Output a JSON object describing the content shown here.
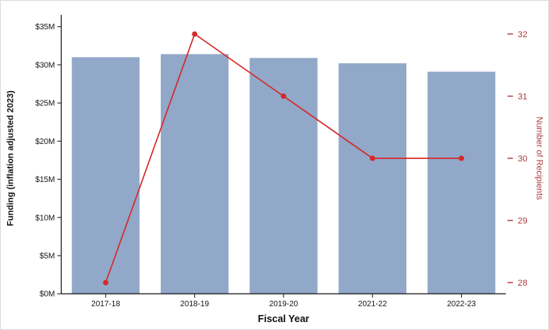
{
  "chart_data": {
    "type": "bar",
    "title": "",
    "categories": [
      "2017-18",
      "2018-19",
      "2019-20",
      "2021-22",
      "2022-23"
    ],
    "series": [
      {
        "name": "Funding (inflation adjusted 2023)",
        "type": "bar",
        "axis": "left",
        "unit": "$M",
        "values": [
          31.0,
          31.4,
          30.9,
          30.2,
          29.1
        ],
        "color": "#92a8c9"
      },
      {
        "name": "Number of Recipients",
        "type": "line",
        "axis": "right",
        "values": [
          28,
          32,
          31,
          30,
          30
        ],
        "color": "#d62728"
      }
    ],
    "xlabel": "Fiscal Year",
    "ylabel_left": "Funding (inflation adjusted 2023)",
    "ylabel_right": "Number of Recipients",
    "left_axis": {
      "ticks": [
        "$0M",
        "$5M",
        "$10M",
        "$15M",
        "$20M",
        "$25M",
        "$30M",
        "$35M"
      ],
      "tick_values": [
        0,
        5,
        10,
        15,
        20,
        25,
        30,
        35
      ],
      "ylim": [
        0,
        35.5
      ]
    },
    "right_axis": {
      "ticks": [
        "28",
        "29",
        "30",
        "31",
        "32"
      ],
      "tick_values": [
        28,
        29,
        30,
        31,
        32
      ],
      "ylim": [
        27.82,
        32.18
      ],
      "color": "#b03a3e"
    },
    "legend": "none",
    "grid": false
  }
}
